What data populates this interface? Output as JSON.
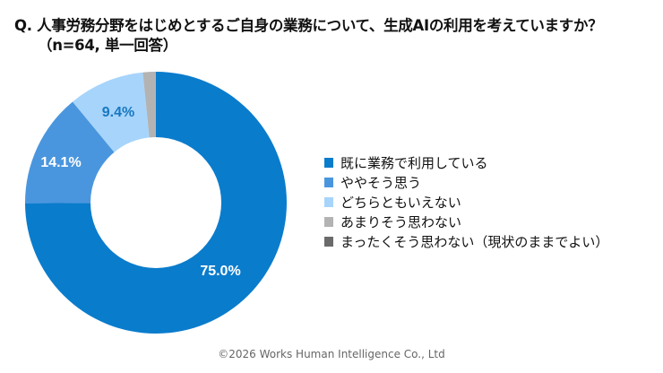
{
  "title": {
    "line1": "Q. 人事労務分野をはじめとするご自身の業務について、生成AIの利用を考えていますか？",
    "line2": "（n=64, 単一回答）"
  },
  "chart_data": {
    "type": "pie",
    "subtype": "donut",
    "title": "Q. 人事労務分野をはじめとするご自身の業務について、生成AIの利用を考えていますか？（n=64, 単一回答）",
    "n": 64,
    "categories": [
      "既に業務で利用している",
      "ややそう思う",
      "どちらともいえない",
      "あまりそう思わない",
      "まったくそう思わない（現状のままでよい）"
    ],
    "values": [
      75.0,
      14.1,
      9.4,
      1.6,
      0.0
    ],
    "data_labels": [
      "75.0%",
      "14.1%",
      "9.4%",
      "",
      ""
    ],
    "colors": [
      "#0a7ccc",
      "#4a96de",
      "#a7d4fb",
      "#b3b3b3",
      "#6a6a6a"
    ],
    "legend_position": "right"
  },
  "labels": {
    "slice0": "75.0%",
    "slice1": "14.1%",
    "slice2": "9.4%"
  },
  "legend": [
    {
      "label": "既に業務で利用している",
      "color": "#0a7ccc"
    },
    {
      "label": "ややそう思う",
      "color": "#4a96de"
    },
    {
      "label": "どちらともいえない",
      "color": "#a7d4fb"
    },
    {
      "label": "あまりそう思わない",
      "color": "#b3b3b3"
    },
    {
      "label": "まったくそう思わない（現状のままでよい）",
      "color": "#6a6a6a"
    }
  ],
  "footer": "©2026 Works Human Intelligence Co., Ltd"
}
